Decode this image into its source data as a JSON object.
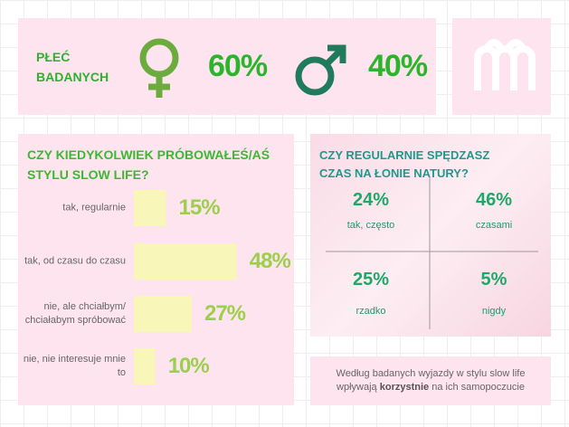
{
  "gender": {
    "label": "PŁEĆ BADANYCH",
    "female": "60%",
    "male": "40%"
  },
  "chart_data": {
    "type": "bar",
    "title": "CZY KIEDYKOLWIEK PRÓBOWAŁEŚ/AŚ STYLU SLOW LIFE?",
    "categories": [
      "tak, regularnie",
      "tak, od czasu do czasu",
      "nie, ale chciałbym/ chciałabym spróbować",
      "nie, nie interesuje mnie to"
    ],
    "values": [
      15,
      48,
      27,
      10
    ],
    "value_labels": [
      "15%",
      "48%",
      "27%",
      "10%"
    ],
    "color": "#f8f6b8"
  },
  "nature": {
    "title": "CZY REGULARNIE SPĘDZASZ CZAS NA ŁONIE NATURY?",
    "quadrants": [
      {
        "value": "24%",
        "label": "tak, często"
      },
      {
        "value": "46%",
        "label": "czasami"
      },
      {
        "value": "25%",
        "label": "rzadko"
      },
      {
        "value": "5%",
        "label": "nigdy"
      }
    ]
  },
  "note": {
    "line1": "Według badanych wyjazdy w stylu slow life",
    "before": "wpływają",
    "emphasis": "korzystnie",
    "after": "na ich samopoczucie"
  }
}
